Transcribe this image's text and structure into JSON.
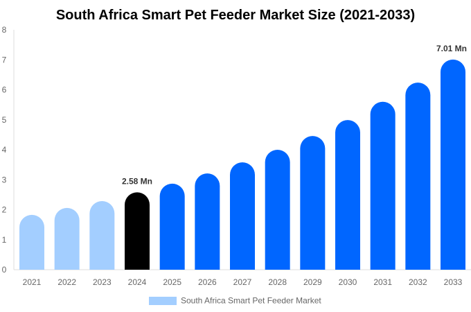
{
  "chart_data": {
    "type": "bar",
    "title": "South Africa Smart Pet Feeder Market Size (2021-2033)",
    "xlabel": "",
    "ylabel": "",
    "ylim": [
      0,
      8
    ],
    "yticks": [
      "0",
      "1",
      "2",
      "3",
      "4",
      "5",
      "6",
      "7",
      "8"
    ],
    "grid": false,
    "legend_position": "bottom",
    "categories": [
      "2021",
      "2022",
      "2023",
      "2024",
      "2025",
      "2026",
      "2027",
      "2028",
      "2029",
      "2030",
      "2031",
      "2032",
      "2033"
    ],
    "series": [
      {
        "name": "South Africa Smart Pet Feeder Market",
        "values": [
          1.83,
          2.06,
          2.29,
          2.58,
          2.87,
          3.21,
          3.58,
          4.0,
          4.46,
          4.99,
          5.6,
          6.24,
          7.01
        ]
      }
    ],
    "bar_colors": {
      "historical": "#A3CEFF",
      "base_year": "#000000",
      "forecast": "#0066FF"
    },
    "bar_color_groups": [
      "historical",
      "historical",
      "historical",
      "base_year",
      "forecast",
      "forecast",
      "forecast",
      "forecast",
      "forecast",
      "forecast",
      "forecast",
      "forecast",
      "forecast"
    ],
    "data_labels": [
      {
        "category": "2024",
        "text": "2.58 Mn"
      },
      {
        "category": "2033",
        "text": "7.01 Mn"
      }
    ]
  }
}
